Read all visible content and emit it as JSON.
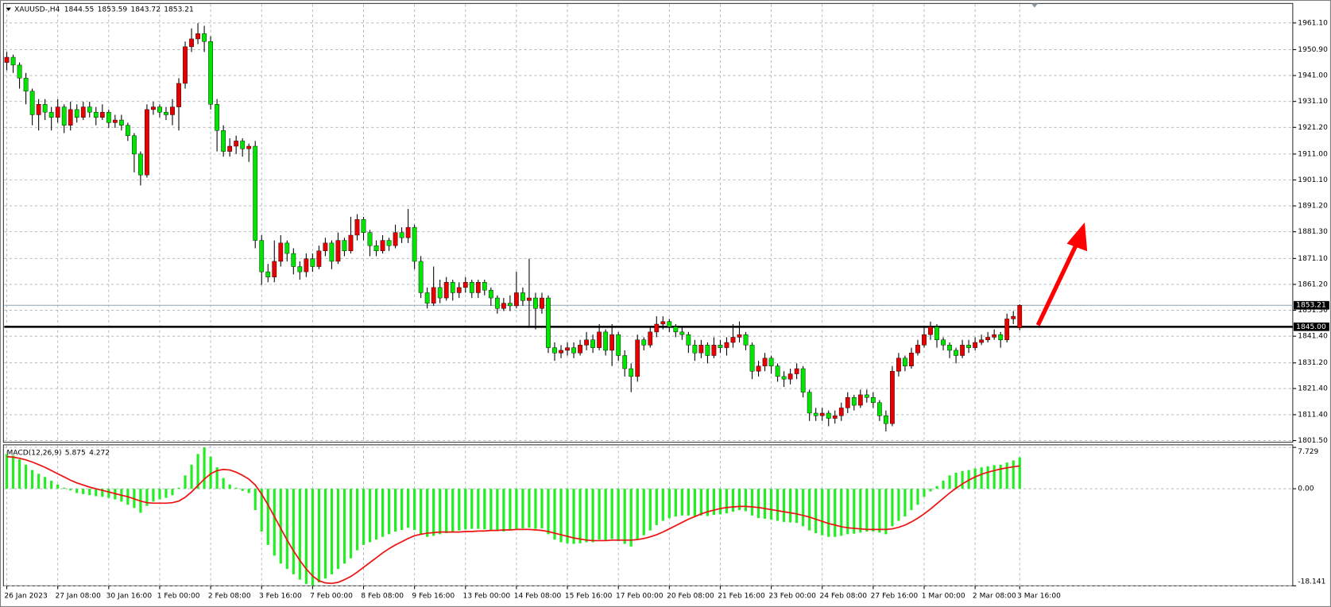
{
  "chart_data": {
    "type": "candlestick",
    "title": "XAUUSD-,H4",
    "grid": true,
    "bull_color": "#e60000",
    "bear_color": "#00e600",
    "wick_color": "#000000",
    "categories": [
      "26 Jan 2023",
      null,
      null,
      null,
      null,
      null,
      null,
      null,
      "27 Jan 08:00",
      null,
      null,
      null,
      null,
      null,
      null,
      null,
      "30 Jan 16:00",
      null,
      null,
      null,
      null,
      null,
      null,
      null,
      "1 Feb 00:00",
      null,
      null,
      null,
      null,
      null,
      null,
      null,
      "2 Feb 08:00",
      null,
      null,
      null,
      null,
      null,
      null,
      null,
      "3 Feb 16:00",
      null,
      null,
      null,
      null,
      null,
      null,
      null,
      "7 Feb 00:00",
      null,
      null,
      null,
      null,
      null,
      null,
      null,
      "8 Feb 08:00",
      null,
      null,
      null,
      null,
      null,
      null,
      null,
      "9 Feb 16:00",
      null,
      null,
      null,
      null,
      null,
      null,
      null,
      "13 Feb 00:00",
      null,
      null,
      null,
      null,
      null,
      null,
      null,
      "14 Feb 08:00",
      null,
      null,
      null,
      null,
      null,
      null,
      null,
      "15 Feb 16:00",
      null,
      null,
      null,
      null,
      null,
      null,
      null,
      "17 Feb 00:00",
      null,
      null,
      null,
      null,
      null,
      null,
      null,
      "20 Feb 08:00",
      null,
      null,
      null,
      null,
      null,
      null,
      null,
      "21 Feb 16:00",
      null,
      null,
      null,
      null,
      null,
      null,
      null,
      "23 Feb 00:00",
      null,
      null,
      null,
      null,
      null,
      null,
      null,
      "24 Feb 08:00",
      null,
      null,
      null,
      null,
      null,
      null,
      null,
      "27 Feb 16:00",
      null,
      null,
      null,
      null,
      null,
      null,
      null,
      "1 Mar 00:00",
      null,
      null,
      null,
      null,
      null,
      null,
      null,
      "2 Mar 08:00",
      null,
      null,
      null,
      null,
      null,
      null,
      "3 Mar 16:00"
    ],
    "open": [
      1946,
      1948,
      1945,
      1940,
      1935,
      1926,
      1930,
      1927,
      1925,
      1929,
      1922,
      1928,
      1925,
      1929,
      1927,
      1925,
      1927,
      1923,
      1924,
      1922,
      1918,
      1911,
      1903,
      1928,
      1929,
      1927,
      1926,
      1929,
      1938,
      1952,
      1955,
      1957,
      1954,
      1930,
      1920,
      1912,
      1914,
      1916,
      1913,
      1914,
      1878,
      1866,
      1864,
      1870,
      1877,
      1873,
      1868,
      1866,
      1871,
      1868,
      1874,
      1877,
      1870,
      1878,
      1874,
      1880,
      1886,
      1881,
      1876,
      1874,
      1878,
      1876,
      1881,
      1879,
      1883,
      1870,
      1858,
      1854,
      1860,
      1856,
      1862,
      1858,
      1860,
      1862,
      1858,
      1862,
      1859,
      1856,
      1852,
      1854,
      1853,
      1858,
      1855,
      1856,
      1852,
      1856,
      1837,
      1835,
      1836,
      1837,
      1835,
      1838,
      1840,
      1837,
      1843,
      1836,
      1842,
      1834,
      1829,
      1826,
      1840,
      1838,
      1843,
      1846,
      1847,
      1845,
      1843,
      1842,
      1838,
      1835,
      1838,
      1834,
      1838,
      1837,
      1839,
      1841,
      1842,
      1838,
      1828,
      1830,
      1833,
      1830,
      1826,
      1825,
      1827,
      1829,
      1820,
      1812,
      1811,
      1812,
      1810,
      1811,
      1814,
      1818,
      1815,
      1819,
      1818,
      1816,
      1811,
      1808,
      1828,
      1833,
      1830,
      1835,
      1838,
      1842,
      1845,
      1840,
      1838,
      1836,
      1834,
      1838,
      1837,
      1839,
      1840,
      1841,
      1842,
      1840,
      1848,
      1844.55
    ],
    "high": [
      1950,
      1949,
      1946,
      1942,
      1936,
      1932,
      1932,
      1929,
      1932,
      1930,
      1931,
      1930,
      1931,
      1931,
      1929,
      1930,
      1928,
      1926,
      1926,
      1923,
      1919,
      1912,
      1930,
      1931,
      1930,
      1929,
      1932,
      1940,
      1954,
      1959,
      1961,
      1960,
      1956,
      1932,
      1922,
      1917,
      1918,
      1917,
      1915,
      1916,
      1880,
      1869,
      1878,
      1880,
      1878,
      1875,
      1870,
      1873,
      1873,
      1876,
      1879,
      1878,
      1881,
      1879,
      1887,
      1888,
      1887,
      1882,
      1878,
      1880,
      1879,
      1884,
      1883,
      1890,
      1884,
      1872,
      1860,
      1868,
      1863,
      1864,
      1863,
      1862,
      1864,
      1863,
      1863,
      1863,
      1860,
      1857,
      1856,
      1857,
      1866,
      1860,
      1871,
      1858,
      1858,
      1857,
      1839,
      1838,
      1839,
      1839,
      1840,
      1843,
      1842,
      1846,
      1844,
      1846,
      1843,
      1836,
      1831,
      1842,
      1841,
      1845,
      1849,
      1849,
      1848,
      1846,
      1845,
      1843,
      1840,
      1840,
      1839,
      1841,
      1840,
      1841,
      1846,
      1847,
      1843,
      1839,
      1832,
      1835,
      1834,
      1831,
      1828,
      1829,
      1831,
      1830,
      1821,
      1814,
      1814,
      1813,
      1813,
      1816,
      1820,
      1819,
      1821,
      1821,
      1820,
      1817,
      1813,
      1830,
      1835,
      1834,
      1837,
      1840,
      1845,
      1847,
      1846,
      1841,
      1839,
      1837,
      1840,
      1840,
      1841,
      1842,
      1843,
      1844,
      1843,
      1850,
      1851,
      1853.59
    ],
    "low": [
      1943,
      1942,
      1936,
      1930,
      1922,
      1920,
      1924,
      1920,
      1923,
      1919,
      1920,
      1923,
      1924,
      1925,
      1922,
      1924,
      1921,
      1921,
      1920,
      1916,
      1904,
      1899,
      1902,
      1926,
      1925,
      1924,
      1922,
      1920,
      1936,
      1950,
      1953,
      1950,
      1928,
      1912,
      1910,
      1910,
      1911,
      1910,
      1908,
      1875,
      1861,
      1862,
      1862,
      1868,
      1870,
      1865,
      1863,
      1864,
      1866,
      1867,
      1872,
      1867,
      1869,
      1872,
      1873,
      1878,
      1878,
      1872,
      1872,
      1873,
      1874,
      1875,
      1877,
      1877,
      1867,
      1856,
      1852,
      1853,
      1854,
      1855,
      1855,
      1856,
      1858,
      1856,
      1856,
      1857,
      1853,
      1850,
      1851,
      1851,
      1852,
      1853,
      1845,
      1844,
      1850,
      1835,
      1832,
      1833,
      1834,
      1833,
      1834,
      1836,
      1835,
      1836,
      1834,
      1830,
      1832,
      1826,
      1820,
      1824,
      1836,
      1837,
      1841,
      1844,
      1843,
      1841,
      1840,
      1835,
      1832,
      1833,
      1831,
      1833,
      1835,
      1834,
      1837,
      1839,
      1836,
      1825,
      1826,
      1828,
      1827,
      1824,
      1822,
      1823,
      1825,
      1818,
      1809,
      1809,
      1809,
      1807,
      1808,
      1809,
      1812,
      1813,
      1814,
      1816,
      1814,
      1809,
      1805,
      1807,
      1826,
      1828,
      1829,
      1834,
      1837,
      1840,
      1837,
      1836,
      1833,
      1831,
      1833,
      1835,
      1836,
      1838,
      1839,
      1840,
      1837,
      1839,
      1846,
      1843.72
    ],
    "close": [
      1948,
      1945,
      1940,
      1935,
      1926,
      1930,
      1927,
      1925,
      1929,
      1922,
      1928,
      1925,
      1929,
      1927,
      1925,
      1927,
      1923,
      1924,
      1922,
      1918,
      1911,
      1903,
      1928,
      1929,
      1927,
      1926,
      1929,
      1938,
      1952,
      1955,
      1957,
      1954,
      1930,
      1920,
      1912,
      1914,
      1916,
      1913,
      1914,
      1878,
      1866,
      1864,
      1870,
      1877,
      1873,
      1868,
      1866,
      1871,
      1868,
      1874,
      1877,
      1870,
      1878,
      1874,
      1880,
      1886,
      1881,
      1876,
      1874,
      1878,
      1876,
      1881,
      1879,
      1883,
      1870,
      1858,
      1854,
      1860,
      1856,
      1862,
      1858,
      1860,
      1862,
      1858,
      1862,
      1859,
      1856,
      1852,
      1854,
      1853,
      1858,
      1855,
      1856,
      1852,
      1856,
      1837,
      1835,
      1836,
      1837,
      1835,
      1838,
      1840,
      1837,
      1843,
      1836,
      1842,
      1834,
      1829,
      1826,
      1840,
      1838,
      1843,
      1846,
      1847,
      1845,
      1843,
      1842,
      1838,
      1835,
      1838,
      1834,
      1838,
      1837,
      1839,
      1841,
      1842,
      1838,
      1828,
      1830,
      1833,
      1830,
      1826,
      1825,
      1827,
      1829,
      1820,
      1812,
      1811,
      1812,
      1810,
      1811,
      1814,
      1818,
      1815,
      1819,
      1818,
      1816,
      1811,
      1808,
      1828,
      1833,
      1830,
      1835,
      1838,
      1842,
      1845,
      1840,
      1838,
      1836,
      1834,
      1838,
      1837,
      1839,
      1840,
      1841,
      1842,
      1840,
      1848,
      1849,
      1853.21
    ],
    "ylim": [
      1800.85,
      1968.24
    ],
    "yticks": [
      {
        "value": 1961.1,
        "label": "1961.10"
      },
      {
        "value": 1950.9,
        "label": "1950.90"
      },
      {
        "value": 1941,
        "label": "1941.00"
      },
      {
        "value": 1931.1,
        "label": "1931.10"
      },
      {
        "value": 1921.2,
        "label": "1921.20"
      },
      {
        "value": 1911,
        "label": "1911.00"
      },
      {
        "value": 1901.1,
        "label": "1901.10"
      },
      {
        "value": 1891.2,
        "label": "1891.20"
      },
      {
        "value": 1881.3,
        "label": "1881.30"
      },
      {
        "value": 1871.1,
        "label": "1871.10"
      },
      {
        "value": 1861.2,
        "label": "1861.20"
      },
      {
        "value": 1851.3,
        "label": "1851.30"
      },
      {
        "value": 1841.4,
        "label": "1841.40"
      },
      {
        "value": 1831.2,
        "label": "1831.20"
      },
      {
        "value": 1821.4,
        "label": "1821.40"
      },
      {
        "value": 1811.4,
        "label": "1811.40"
      },
      {
        "value": 1801.5,
        "label": "1801.50"
      }
    ],
    "hline": {
      "value": 1845,
      "label": "1845.00",
      "color": "#000000"
    },
    "price_line_color": "#8fa3b5",
    "macd": {
      "title": "MACD(12,26,9)",
      "histogram_color": "#22ee22",
      "signal_color": "#ee1111",
      "ylim": [
        -18.141,
        7.729
      ],
      "yticks": [
        7.729,
        {
          "value": 0,
          "label": "0.00"
        },
        -18.141
      ],
      "histogram": [
        6.5,
        6.2,
        5.5,
        4.5,
        3.5,
        2.8,
        2.2,
        1.5,
        0.8,
        0.2,
        -0.3,
        -0.8,
        -1.0,
        -1.2,
        -1.4,
        -1.5,
        -1.7,
        -2.0,
        -2.4,
        -3.0,
        -3.6,
        -4.5,
        -3.2,
        -2.4,
        -2.0,
        -1.7,
        -1.2,
        0.2,
        2.5,
        4.5,
        6.5,
        7.7,
        6.0,
        4.0,
        2.0,
        0.8,
        0.2,
        -0.4,
        -0.8,
        -4.0,
        -8.0,
        -10.5,
        -12.5,
        -14.0,
        -15.0,
        -16.0,
        -17.0,
        -17.8,
        -18.1,
        -17.5,
        -16.8,
        -16.0,
        -15.0,
        -14.0,
        -13.0,
        -11.5,
        -10.5,
        -10.0,
        -9.5,
        -9.0,
        -8.5,
        -8.0,
        -7.7,
        -7.3,
        -7.7,
        -8.5,
        -9.0,
        -8.8,
        -8.5,
        -8.3,
        -8.0,
        -7.8,
        -7.6,
        -7.5,
        -7.5,
        -7.6,
        -7.7,
        -7.9,
        -8.0,
        -7.8,
        -7.5,
        -7.4,
        -7.3,
        -7.5,
        -7.4,
        -8.5,
        -9.5,
        -10.0,
        -10.2,
        -10.3,
        -10.2,
        -10.0,
        -10.0,
        -9.5,
        -9.6,
        -9.4,
        -9.8,
        -10.3,
        -10.8,
        -9.5,
        -8.7,
        -7.8,
        -6.8,
        -6.0,
        -5.5,
        -5.2,
        -5.0,
        -5.0,
        -5.1,
        -5.0,
        -5.1,
        -4.9,
        -4.8,
        -4.6,
        -4.3,
        -4.0,
        -4.2,
        -5.0,
        -5.5,
        -5.6,
        -5.8,
        -6.0,
        -6.2,
        -6.3,
        -6.4,
        -7.0,
        -7.8,
        -8.3,
        -8.7,
        -9.0,
        -9.0,
        -8.8,
        -8.5,
        -8.4,
        -8.2,
        -8.0,
        -8.0,
        -8.2,
        -8.5,
        -7.0,
        -6.0,
        -5.2,
        -4.0,
        -3.0,
        -1.5,
        -0.5,
        0.5,
        1.5,
        2.5,
        3.0,
        3.3,
        3.5,
        3.8,
        4.0,
        4.2,
        4.4,
        4.5,
        4.9,
        5.3,
        5.875
      ],
      "signal": [
        6.0,
        5.9,
        5.7,
        5.4,
        5.0,
        4.5,
        4.0,
        3.4,
        2.8,
        2.2,
        1.6,
        1.1,
        0.7,
        0.3,
        0,
        -0.3,
        -0.6,
        -0.9,
        -1.2,
        -1.5,
        -1.9,
        -2.3,
        -2.6,
        -2.7,
        -2.7,
        -2.7,
        -2.6,
        -2.3,
        -1.6,
        -0.6,
        0.6,
        1.8,
        2.8,
        3.4,
        3.6,
        3.5,
        3.1,
        2.5,
        1.8,
        0.7,
        -1.0,
        -3.0,
        -5.2,
        -7.4,
        -9.6,
        -11.6,
        -13.4,
        -15.0,
        -16.3,
        -17.2,
        -17.6,
        -17.7,
        -17.5,
        -17.0,
        -16.4,
        -15.6,
        -14.7,
        -13.8,
        -12.9,
        -12.0,
        -11.2,
        -10.5,
        -9.9,
        -9.3,
        -8.8,
        -8.5,
        -8.3,
        -8.2,
        -8.1,
        -8.1,
        -8.1,
        -8.1,
        -8.0,
        -8.0,
        -7.9,
        -7.9,
        -7.8,
        -7.8,
        -7.7,
        -7.7,
        -7.6,
        -7.6,
        -7.6,
        -7.7,
        -7.8,
        -8.0,
        -8.3,
        -8.6,
        -8.9,
        -9.2,
        -9.4,
        -9.6,
        -9.7,
        -9.7,
        -9.7,
        -9.6,
        -9.6,
        -9.6,
        -9.6,
        -9.5,
        -9.3,
        -9.0,
        -8.6,
        -8.1,
        -7.5,
        -6.9,
        -6.3,
        -5.7,
        -5.2,
        -4.7,
        -4.3,
        -4.0,
        -3.7,
        -3.5,
        -3.4,
        -3.3,
        -3.3,
        -3.4,
        -3.5,
        -3.7,
        -3.9,
        -4.1,
        -4.3,
        -4.5,
        -4.7,
        -5.0,
        -5.3,
        -5.7,
        -6.1,
        -6.5,
        -6.8,
        -7.1,
        -7.3,
        -7.4,
        -7.5,
        -7.6,
        -7.6,
        -7.6,
        -7.6,
        -7.5,
        -7.2,
        -6.8,
        -6.2,
        -5.5,
        -4.7,
        -3.8,
        -2.8,
        -1.8,
        -0.8,
        0.1,
        0.9,
        1.6,
        2.2,
        2.7,
        3.1,
        3.4,
        3.7,
        3.9,
        4.1,
        4.272
      ]
    }
  }
}
